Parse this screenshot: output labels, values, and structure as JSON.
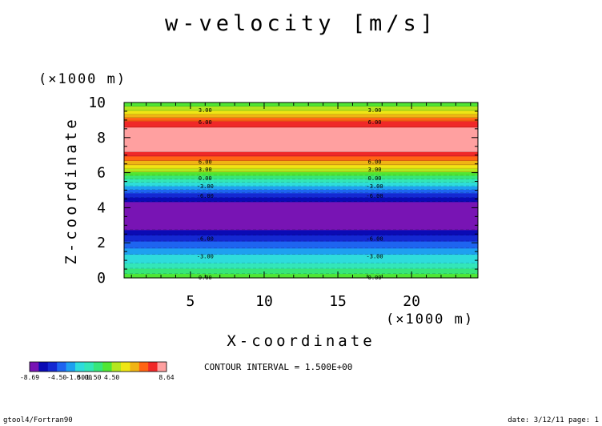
{
  "chart_data": {
    "type": "heatmap",
    "title": "w-velocity [m/s]",
    "xlabel": "X-coordinate",
    "ylabel": "Z-coordinate",
    "x_unit": "(×1000 m)",
    "y_unit": "(×1000 m)",
    "xlim": [
      0.5,
      24.5
    ],
    "ylim": [
      0,
      10
    ],
    "x_ticks": [
      5,
      10,
      15,
      20
    ],
    "y_ticks": [
      0,
      2,
      4,
      6,
      8,
      10
    ],
    "grid": false,
    "bands": [
      {
        "z0": 0.0,
        "z1": 0.25,
        "color": "#50e633"
      },
      {
        "z0": 0.25,
        "z1": 0.55,
        "color": "#37e67a"
      },
      {
        "z0": 0.55,
        "z1": 0.85,
        "color": "#33e6b8"
      },
      {
        "z0": 0.85,
        "z1": 1.35,
        "color": "#2edcdc"
      },
      {
        "z0": 1.35,
        "z1": 1.7,
        "color": "#1ea0f0"
      },
      {
        "z0": 1.7,
        "z1": 2.1,
        "color": "#1e64f0"
      },
      {
        "z0": 2.1,
        "z1": 2.45,
        "color": "#1428d2"
      },
      {
        "z0": 2.45,
        "z1": 2.75,
        "color": "#0a0ab4"
      },
      {
        "z0": 2.75,
        "z1": 4.35,
        "color": "#7814b4"
      },
      {
        "z0": 4.35,
        "z1": 4.6,
        "color": "#0a0ab4"
      },
      {
        "z0": 4.6,
        "z1": 4.85,
        "color": "#1428d2"
      },
      {
        "z0": 4.85,
        "z1": 5.05,
        "color": "#1e64f0"
      },
      {
        "z0": 5.05,
        "z1": 5.25,
        "color": "#1ea0f0"
      },
      {
        "z0": 5.25,
        "z1": 5.45,
        "color": "#2edcdc"
      },
      {
        "z0": 5.45,
        "z1": 5.65,
        "color": "#33e6b8"
      },
      {
        "z0": 5.65,
        "z1": 5.85,
        "color": "#37e67a"
      },
      {
        "z0": 5.85,
        "z1": 6.05,
        "color": "#50e633"
      },
      {
        "z0": 6.05,
        "z1": 6.25,
        "color": "#b4e61e"
      },
      {
        "z0": 6.25,
        "z1": 6.45,
        "color": "#f0e614"
      },
      {
        "z0": 6.45,
        "z1": 6.7,
        "color": "#f0b414"
      },
      {
        "z0": 6.7,
        "z1": 6.95,
        "color": "#ff6414"
      },
      {
        "z0": 6.95,
        "z1": 7.2,
        "color": "#f02828"
      },
      {
        "z0": 7.2,
        "z1": 8.6,
        "color": "#ffa0a0"
      },
      {
        "z0": 8.6,
        "z1": 8.95,
        "color": "#f02828"
      },
      {
        "z0": 8.95,
        "z1": 9.15,
        "color": "#ff6414"
      },
      {
        "z0": 9.15,
        "z1": 9.35,
        "color": "#f0b414"
      },
      {
        "z0": 9.35,
        "z1": 9.55,
        "color": "#f0e614"
      },
      {
        "z0": 9.55,
        "z1": 9.8,
        "color": "#b4e61e"
      },
      {
        "z0": 9.8,
        "z1": 10.0,
        "color": "#50e633"
      }
    ],
    "contour_labels": [
      {
        "text": "3.00",
        "x": 6.0,
        "z": 9.6
      },
      {
        "text": "6.00",
        "x": 6.0,
        "z": 8.9
      },
      {
        "text": "6.00",
        "x": 6.0,
        "z": 6.65
      },
      {
        "text": "3.00",
        "x": 6.0,
        "z": 6.2
      },
      {
        "text": "0.00",
        "x": 6.0,
        "z": 5.7
      },
      {
        "text": "-3.00",
        "x": 6.0,
        "z": 5.25
      },
      {
        "text": "-6.00",
        "x": 6.0,
        "z": 4.7
      },
      {
        "text": "-6.00",
        "x": 6.0,
        "z": 2.25
      },
      {
        "text": "-3.00",
        "x": 6.0,
        "z": 1.25
      },
      {
        "text": "0.00",
        "x": 6.0,
        "z": 0.05
      },
      {
        "text": "3.00",
        "x": 17.5,
        "z": 9.6
      },
      {
        "text": "6.00",
        "x": 17.5,
        "z": 8.9
      },
      {
        "text": "6.00",
        "x": 17.5,
        "z": 6.65
      },
      {
        "text": "3.00",
        "x": 17.5,
        "z": 6.2
      },
      {
        "text": "0.00",
        "x": 17.5,
        "z": 5.7
      },
      {
        "text": "-3.00",
        "x": 17.5,
        "z": 5.25
      },
      {
        "text": "-6.00",
        "x": 17.5,
        "z": 4.7
      },
      {
        "text": "-6.00",
        "x": 17.5,
        "z": 2.25
      },
      {
        "text": "-3.00",
        "x": 17.5,
        "z": 1.25
      },
      {
        "text": "0.00",
        "x": 17.5,
        "z": 0.05
      }
    ],
    "colorbar": {
      "colors": [
        "#7814b4",
        "#0a0ab4",
        "#1428d2",
        "#1e64f0",
        "#1ea0f0",
        "#2edcdc",
        "#33e6b8",
        "#37e67a",
        "#50e633",
        "#b4e61e",
        "#f0e614",
        "#f0b414",
        "#ff6414",
        "#f02828",
        "#ffa0a0"
      ],
      "labels": [
        "-8.69",
        "-4.50",
        "-1.50",
        "0.00",
        "1.50",
        "4.50",
        "8.64"
      ],
      "label_positions": [
        0,
        3,
        5,
        6,
        7,
        9,
        15
      ]
    },
    "contour_interval_text": "CONTOUR INTERVAL = 1.500E+00"
  },
  "footer": {
    "left": "gtool4/Fortran90",
    "right": "date: 3/12/11 page: 1"
  }
}
